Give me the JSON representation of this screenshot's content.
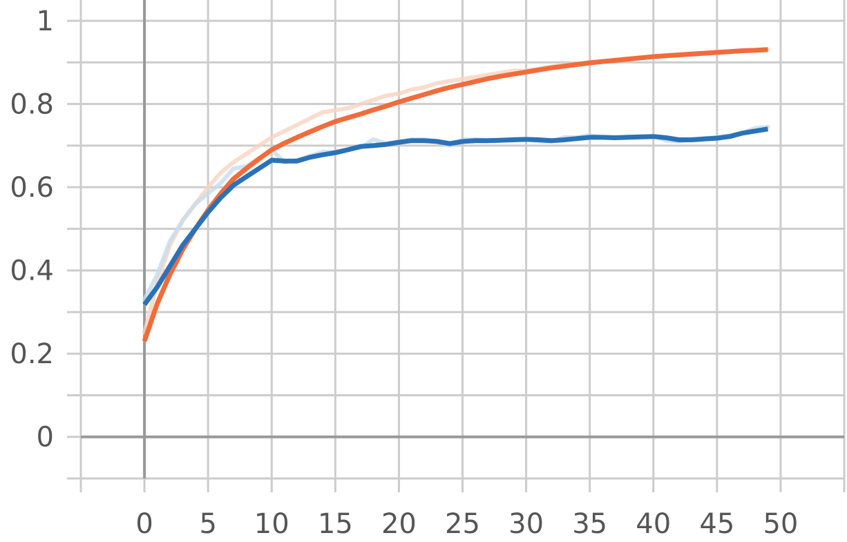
{
  "chart_data": {
    "type": "line",
    "title": "",
    "xlabel": "",
    "ylabel": "",
    "xlim": [
      -5,
      55
    ],
    "ylim": [
      -0.1,
      1.05
    ],
    "x_ticks": [
      0,
      5,
      10,
      15,
      20,
      25,
      30,
      35,
      40,
      45,
      50
    ],
    "x_tick_labels": [
      "0",
      "5",
      "10",
      "15",
      "20",
      "25",
      "30",
      "35",
      "40",
      "45",
      "50"
    ],
    "y_ticks": [
      0,
      0.2,
      0.4,
      0.6,
      0.8,
      1
    ],
    "y_tick_labels": [
      "0",
      "0.2",
      "0.4",
      "0.6",
      "0.8",
      "1"
    ],
    "grid": true,
    "legend": "none",
    "series": [
      {
        "color": "#f26b3a",
        "raw_color": "#f8d3c1",
        "x": [
          0,
          1,
          2,
          3,
          4,
          5,
          6,
          7,
          8,
          9,
          10,
          11,
          12,
          13,
          14,
          15,
          16,
          17,
          18,
          19,
          20,
          21,
          22,
          23,
          24,
          25,
          26,
          27,
          28,
          29,
          30,
          31,
          32,
          33,
          34,
          35,
          36,
          37,
          38,
          39,
          40,
          41,
          42,
          43,
          44,
          45,
          46,
          47,
          48,
          49
        ],
        "values": [
          0.23,
          0.32,
          0.39,
          0.45,
          0.5,
          0.545,
          0.585,
          0.62,
          0.645,
          0.668,
          0.69,
          0.706,
          0.72,
          0.733,
          0.746,
          0.758,
          0.767,
          0.776,
          0.786,
          0.795,
          0.805,
          0.814,
          0.823,
          0.832,
          0.84,
          0.847,
          0.854,
          0.861,
          0.867,
          0.872,
          0.877,
          0.882,
          0.887,
          0.891,
          0.895,
          0.899,
          0.902,
          0.905,
          0.908,
          0.911,
          0.914,
          0.916,
          0.918,
          0.92,
          0.922,
          0.924,
          0.926,
          0.928,
          0.929,
          0.931
        ],
        "raw_values": [
          0.25,
          0.37,
          0.46,
          0.52,
          0.56,
          0.6,
          0.635,
          0.66,
          0.68,
          0.7,
          0.72,
          0.735,
          0.75,
          0.765,
          0.78,
          0.785,
          0.79,
          0.8,
          0.81,
          0.82,
          0.825,
          0.835,
          0.84,
          0.85,
          0.855,
          0.86,
          0.865,
          0.87,
          0.875,
          0.88,
          0.88,
          0.885,
          0.89,
          0.893,
          0.897,
          0.9,
          0.903,
          0.906,
          0.909,
          0.912,
          0.914,
          0.916,
          0.918,
          0.92,
          0.922,
          0.924,
          0.926,
          0.928,
          0.929,
          0.931
        ]
      },
      {
        "color": "#2a72b8",
        "raw_color": "#c6dcee",
        "x": [
          0,
          1,
          2,
          3,
          4,
          5,
          6,
          7,
          8,
          9,
          10,
          11,
          12,
          13,
          14,
          15,
          16,
          17,
          18,
          19,
          20,
          21,
          22,
          23,
          24,
          25,
          26,
          27,
          28,
          29,
          30,
          31,
          32,
          33,
          34,
          35,
          36,
          37,
          38,
          39,
          40,
          41,
          42,
          43,
          44,
          45,
          46,
          47,
          48,
          49
        ],
        "values": [
          0.318,
          0.36,
          0.41,
          0.46,
          0.5,
          0.54,
          0.575,
          0.605,
          0.625,
          0.645,
          0.665,
          0.663,
          0.663,
          0.672,
          0.678,
          0.683,
          0.69,
          0.698,
          0.7,
          0.703,
          0.708,
          0.712,
          0.712,
          0.71,
          0.705,
          0.71,
          0.712,
          0.712,
          0.713,
          0.714,
          0.715,
          0.714,
          0.712,
          0.714,
          0.717,
          0.72,
          0.72,
          0.719,
          0.72,
          0.721,
          0.722,
          0.719,
          0.714,
          0.714,
          0.716,
          0.718,
          0.722,
          0.73,
          0.735,
          0.74
        ],
        "raw_values": [
          0.33,
          0.39,
          0.47,
          0.52,
          0.56,
          0.585,
          0.61,
          0.645,
          0.65,
          0.67,
          0.69,
          0.66,
          0.665,
          0.675,
          0.685,
          0.685,
          0.69,
          0.695,
          0.715,
          0.705,
          0.71,
          0.715,
          0.715,
          0.71,
          0.7,
          0.715,
          0.715,
          0.713,
          0.713,
          0.716,
          0.716,
          0.71,
          0.71,
          0.72,
          0.72,
          0.725,
          0.72,
          0.718,
          0.722,
          0.72,
          0.723,
          0.712,
          0.71,
          0.715,
          0.718,
          0.72,
          0.725,
          0.73,
          0.742,
          0.745
        ]
      }
    ]
  }
}
